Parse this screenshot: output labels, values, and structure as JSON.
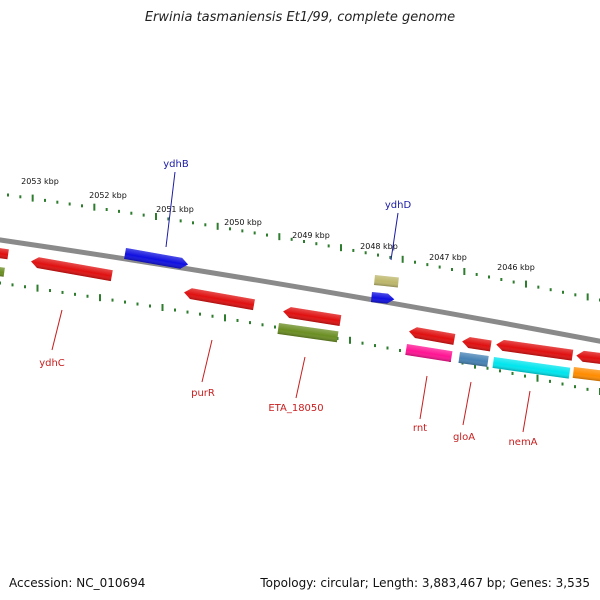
{
  "title": "Erwinia tasmaniensis Et1/99, complete genome",
  "accession": "Accession: NC_010694",
  "summary": "Topology: circular; Length: 3,883,467 bp; Genes: 3,535",
  "colors": {
    "backbone": "#8a8a8a",
    "tick": "#2e7d2e",
    "label_forward": "#1a1aa6",
    "label_reverse": "#c81e1e"
  },
  "scale_labels": [
    "2053 kbp",
    "2052 kbp",
    "2051 kbp",
    "2050 kbp",
    "2049 kbp",
    "2048 kbp",
    "2047 kbp",
    "2046 kbp"
  ],
  "genes": [
    {
      "name": "",
      "strand": "reverse",
      "color": "#e01010"
    },
    {
      "name": "",
      "strand": "reverse",
      "color": "#6b8e23"
    },
    {
      "name": "ydhC",
      "strand": "reverse",
      "color": "#e01010"
    },
    {
      "name": "ydhB",
      "strand": "forward",
      "color": "#1010e0"
    },
    {
      "name": "purR",
      "strand": "reverse",
      "color": "#e01010"
    },
    {
      "name": "",
      "strand": "reverse",
      "color": "#e01010"
    },
    {
      "name": "ETA_18050",
      "strand": "reverse",
      "color": "#6b8e23"
    },
    {
      "name": "ydhD",
      "strand": "forward",
      "color": "#bdb76b"
    },
    {
      "name": "",
      "strand": "forward",
      "color": "#1010e0"
    },
    {
      "name": "",
      "strand": "reverse",
      "color": "#e01010"
    },
    {
      "name": "rnt",
      "strand": "reverse",
      "color": "#ff1493"
    },
    {
      "name": "",
      "strand": "reverse",
      "color": "#e01010"
    },
    {
      "name": "gloA",
      "strand": "reverse",
      "color": "#4682b4"
    },
    {
      "name": "",
      "strand": "reverse",
      "color": "#e01010"
    },
    {
      "name": "nemA",
      "strand": "reverse",
      "color": "#00e5ee"
    },
    {
      "name": "",
      "strand": "reverse",
      "color": "#e01010"
    },
    {
      "name": "",
      "strand": "reverse",
      "color": "#ff8c00"
    }
  ]
}
